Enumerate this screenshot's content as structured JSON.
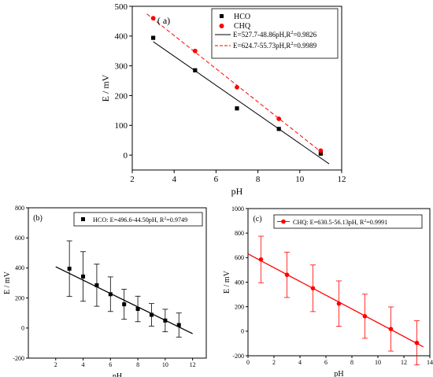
{
  "chart_data": [
    {
      "id": "a",
      "type": "scatter",
      "panel_label": "( a)",
      "xlabel": "pH",
      "ylabel": "E / mV",
      "xlim": [
        2,
        12
      ],
      "ylim": [
        -50,
        500
      ],
      "x_ticks": [
        2,
        4,
        6,
        8,
        10,
        12
      ],
      "y_ticks": [
        0,
        100,
        200,
        300,
        400,
        500
      ],
      "legend_position": "top-right",
      "series": [
        {
          "name": "HCO",
          "color": "#000000",
          "marker": "square",
          "x": [
            3,
            5,
            7,
            9,
            11
          ],
          "y": [
            394,
            285,
            157,
            88,
            5
          ]
        },
        {
          "name": "CHQ",
          "color": "#ff0000",
          "marker": "circle",
          "x": [
            3,
            5,
            7,
            9,
            11
          ],
          "y": [
            460,
            350,
            228,
            122,
            15
          ]
        }
      ],
      "fits": [
        {
          "label_main": "E=527.7-48.86pH,R",
          "sup": "2",
          "label_tail": "=0.9826",
          "intercept": 527.7,
          "slope": -48.86,
          "x_range": [
            3,
            11.4
          ],
          "color": "#000000",
          "dashed": false
        },
        {
          "label_main": "E=624.7-55.73pH,R",
          "sup": "2",
          "label_tail": "=0.9989",
          "intercept": 624.7,
          "slope": -55.73,
          "x_range": [
            2.7,
            11.2
          ],
          "color": "#ff0000",
          "dashed": true
        }
      ]
    },
    {
      "id": "b",
      "type": "scatter",
      "panel_label": "(b)",
      "xlabel": "pH",
      "ylabel": "E / mV",
      "xlim": [
        0,
        13
      ],
      "ylim": [
        -200,
        800
      ],
      "x_ticks": [
        2,
        4,
        6,
        8,
        10,
        12
      ],
      "y_ticks": [
        -200,
        0,
        200,
        400,
        600,
        800
      ],
      "legend_position": "top-right",
      "legend_text": "HCO: E=496.6-44.50pH, R",
      "legend_sup": "2",
      "legend_tail": "=0.9749",
      "series": [
        {
          "name": "HCO",
          "color": "#000000",
          "marker": "square",
          "x": [
            3,
            4,
            5,
            6,
            7,
            8,
            9,
            10,
            11
          ],
          "y": [
            395,
            343,
            285,
            225,
            158,
            127,
            88,
            50,
            20
          ],
          "err": [
            185,
            165,
            140,
            115,
            100,
            85,
            75,
            75,
            80
          ]
        }
      ],
      "fits": [
        {
          "intercept": 496.6,
          "slope": -44.5,
          "x_range": [
            2,
            12
          ],
          "color": "#000000",
          "dashed": false
        }
      ]
    },
    {
      "id": "c",
      "type": "scatter",
      "panel_label": "(c)",
      "xlabel": "pH",
      "ylabel": "E / mV",
      "xlim": [
        0,
        14
      ],
      "ylim": [
        -200,
        1000
      ],
      "x_ticks": [
        0,
        2,
        4,
        6,
        8,
        10,
        12,
        14
      ],
      "y_ticks": [
        -200,
        0,
        200,
        400,
        600,
        800,
        1000
      ],
      "legend_position": "top-right",
      "legend_text": "CHQ: E=630.5-56.13pH, R",
      "legend_sup": "2",
      "legend_tail": "=0.9991",
      "series": [
        {
          "name": "CHQ",
          "color": "#ff0000",
          "marker": "circle",
          "x": [
            1,
            3,
            5,
            7,
            9,
            11,
            13
          ],
          "y": [
            585,
            460,
            350,
            225,
            122,
            18,
            -95
          ],
          "err": [
            190,
            185,
            190,
            185,
            180,
            180,
            180
          ]
        }
      ],
      "fits": [
        {
          "intercept": 630.5,
          "slope": -56.13,
          "x_range": [
            0,
            13.5
          ],
          "color": "#ff0000",
          "dashed": false
        }
      ]
    }
  ]
}
